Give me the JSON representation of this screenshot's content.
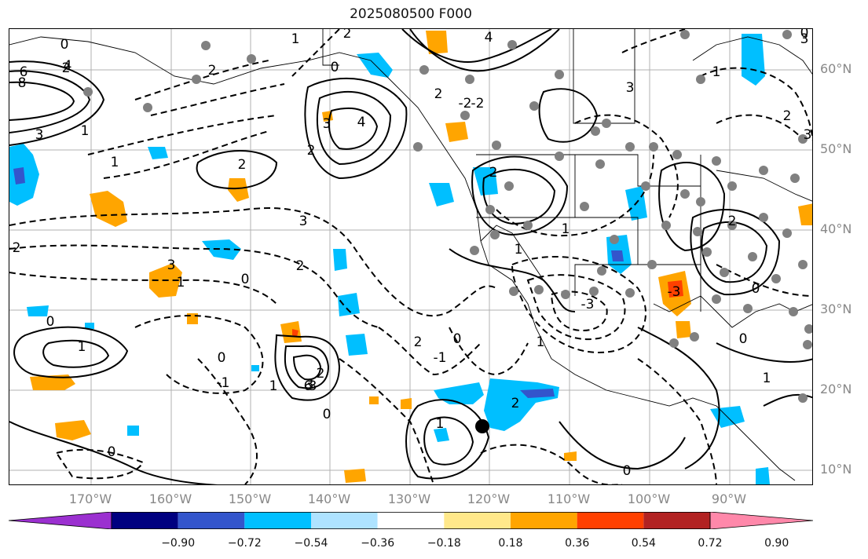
{
  "title": "2025080500 F000",
  "lat_labels": [
    "60°N",
    "50°N",
    "40°N",
    "30°N",
    "20°N",
    "10°N"
  ],
  "lon_labels": [
    "170°W",
    "160°W",
    "150°W",
    "140°W",
    "130°W",
    "120°W",
    "110°W",
    "100°W",
    "90°W"
  ],
  "contour_labels": [
    "0",
    "2",
    "4",
    "6",
    "8",
    "3",
    "1",
    "1",
    "2",
    "1",
    "2",
    "3",
    "0",
    "2",
    "4",
    "3",
    "2",
    "3",
    "1",
    "0",
    "2",
    "4",
    "-2",
    "-2",
    "-3",
    "3",
    "1",
    "2",
    "1",
    "0",
    "2",
    "1",
    "0",
    "-2",
    "3",
    "1",
    "2",
    "0",
    "-1",
    "6",
    "3",
    "2",
    "0",
    "1",
    "2",
    "0",
    "-1",
    "0",
    "3",
    "2",
    "1",
    "0",
    "-3",
    "0",
    "1",
    "2",
    "3",
    "1",
    "0"
  ],
  "colorbar": {
    "ticks": [
      "−0.90",
      "−0.72",
      "−0.54",
      "−0.36",
      "−0.18",
      "0.18",
      "0.36",
      "0.54",
      "0.72",
      "0.90"
    ],
    "colors": [
      "#9b30d0",
      "#000080",
      "#3355cc",
      "#00bfff",
      "#aee3ff",
      "#ffffff",
      "#ffe88a",
      "#ffa500",
      "#ff4000",
      "#b22222",
      "#ff88aa"
    ]
  },
  "marker": {
    "label": "",
    "color": "#000000"
  }
}
